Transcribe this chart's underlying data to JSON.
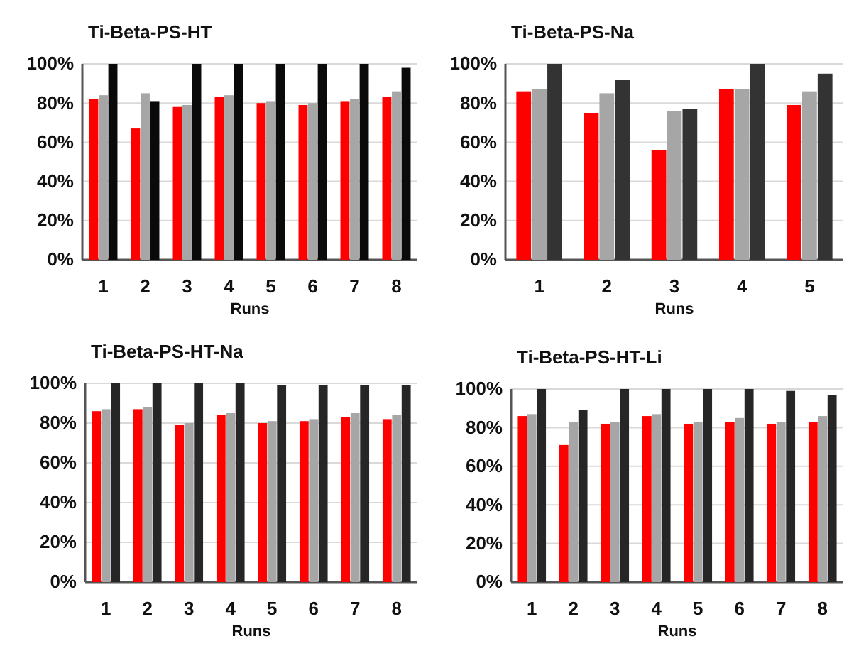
{
  "chart_data": [
    {
      "type": "bar",
      "title": "Ti-Beta-PS-HT",
      "xlabel": "Runs",
      "categories": [
        "1",
        "2",
        "3",
        "4",
        "5",
        "6",
        "7",
        "8"
      ],
      "ylim": [
        0,
        100
      ],
      "yticks": [
        {
          "value": 0,
          "label": "0%"
        },
        {
          "value": 20,
          "label": "20%"
        },
        {
          "value": 40,
          "label": "40%"
        },
        {
          "value": 60,
          "label": "60%"
        },
        {
          "value": 80,
          "label": "80%"
        },
        {
          "value": 100,
          "label": "100%"
        }
      ],
      "grid": "y",
      "series": [
        {
          "color": "#ff0000",
          "values": [
            82,
            67,
            78,
            83,
            80,
            79,
            81,
            83
          ]
        },
        {
          "color": "#a6a6a6",
          "values": [
            84,
            85,
            79,
            84,
            81,
            80,
            82,
            86
          ]
        },
        {
          "color": "#0a0a0a",
          "values": [
            100,
            81,
            100,
            100,
            100,
            100,
            100,
            98
          ]
        }
      ]
    },
    {
      "type": "bar",
      "title": "Ti-Beta-PS-Na",
      "xlabel": "Runs",
      "categories": [
        "1",
        "2",
        "3",
        "4",
        "5"
      ],
      "ylim": [
        0,
        100
      ],
      "yticks": [
        {
          "value": 0,
          "label": "0%"
        },
        {
          "value": 20,
          "label": "20%"
        },
        {
          "value": 40,
          "label": "40%"
        },
        {
          "value": 60,
          "label": "60%"
        },
        {
          "value": 80,
          "label": "80%"
        },
        {
          "value": 100,
          "label": "100%"
        }
      ],
      "grid": "y",
      "series": [
        {
          "color": "#ff0000",
          "values": [
            86,
            75,
            56,
            87,
            79
          ]
        },
        {
          "color": "#a6a6a6",
          "values": [
            87,
            85,
            76,
            87,
            86
          ]
        },
        {
          "color": "#333333",
          "values": [
            100,
            92,
            77,
            100,
            95
          ]
        }
      ]
    },
    {
      "type": "bar",
      "title": "Ti-Beta-PS-HT-Na",
      "xlabel": "Runs",
      "categories": [
        "1",
        "2",
        "3",
        "4",
        "5",
        "6",
        "7",
        "8"
      ],
      "ylim": [
        0,
        100
      ],
      "yticks": [
        {
          "value": 0,
          "label": "0%"
        },
        {
          "value": 20,
          "label": "20%"
        },
        {
          "value": 40,
          "label": "40%"
        },
        {
          "value": 60,
          "label": "60%"
        },
        {
          "value": 80,
          "label": "80%"
        },
        {
          "value": 100,
          "label": "100%"
        }
      ],
      "grid": "y",
      "series": [
        {
          "color": "#ff0000",
          "values": [
            86,
            87,
            79,
            84,
            80,
            81,
            83,
            82
          ]
        },
        {
          "color": "#a6a6a6",
          "values": [
            87,
            88,
            80,
            85,
            81,
            82,
            85,
            84
          ]
        },
        {
          "color": "#262626",
          "values": [
            100,
            100,
            100,
            100,
            99,
            99,
            99,
            99
          ]
        }
      ]
    },
    {
      "type": "bar",
      "title": "Ti-Beta-PS-HT-Li",
      "xlabel": "Runs",
      "categories": [
        "1",
        "2",
        "3",
        "4",
        "5",
        "6",
        "7",
        "8"
      ],
      "ylim": [
        0,
        100
      ],
      "yticks": [
        {
          "value": 0,
          "label": "0%"
        },
        {
          "value": 20,
          "label": "20%"
        },
        {
          "value": 40,
          "label": "40%"
        },
        {
          "value": 60,
          "label": "60%"
        },
        {
          "value": 80,
          "label": "80%"
        },
        {
          "value": 100,
          "label": "100%"
        }
      ],
      "grid": "y",
      "series": [
        {
          "color": "#ff0000",
          "values": [
            86,
            71,
            82,
            86,
            82,
            83,
            82,
            83
          ]
        },
        {
          "color": "#a6a6a6",
          "values": [
            87,
            83,
            83,
            87,
            83,
            85,
            83,
            86
          ]
        },
        {
          "color": "#262626",
          "values": [
            100,
            89,
            100,
            100,
            100,
            100,
            99,
            97
          ]
        }
      ]
    }
  ]
}
